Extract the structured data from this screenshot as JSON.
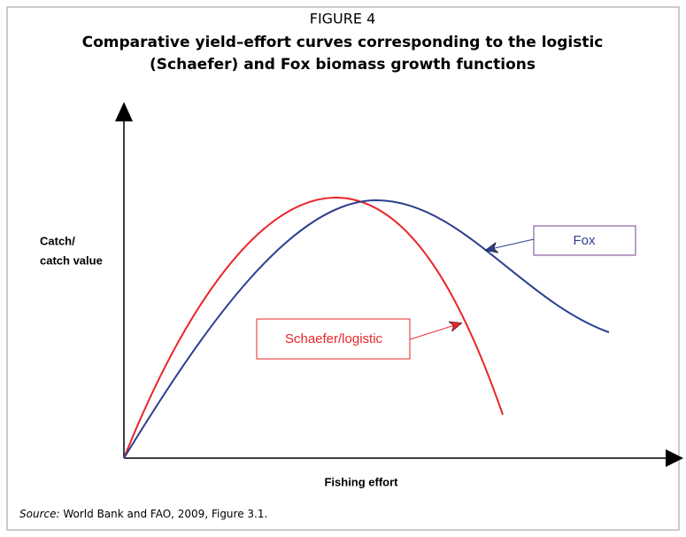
{
  "figure_label": "FIGURE 4",
  "title": {
    "line1": "Comparative yield–effort curves corresponding to the logistic",
    "line2": "(Schaefer) and Fox biomass growth functions"
  },
  "y_axis_label": {
    "line1": "Catch/",
    "line2": "catch value"
  },
  "x_axis_label": "Fishing effort",
  "callouts": {
    "fox": "Fox",
    "schaefer": "Schaefer/logistic"
  },
  "source": {
    "label": "Source:",
    "text": "World Bank and FAO, 2009, Figure 3.1."
  }
}
